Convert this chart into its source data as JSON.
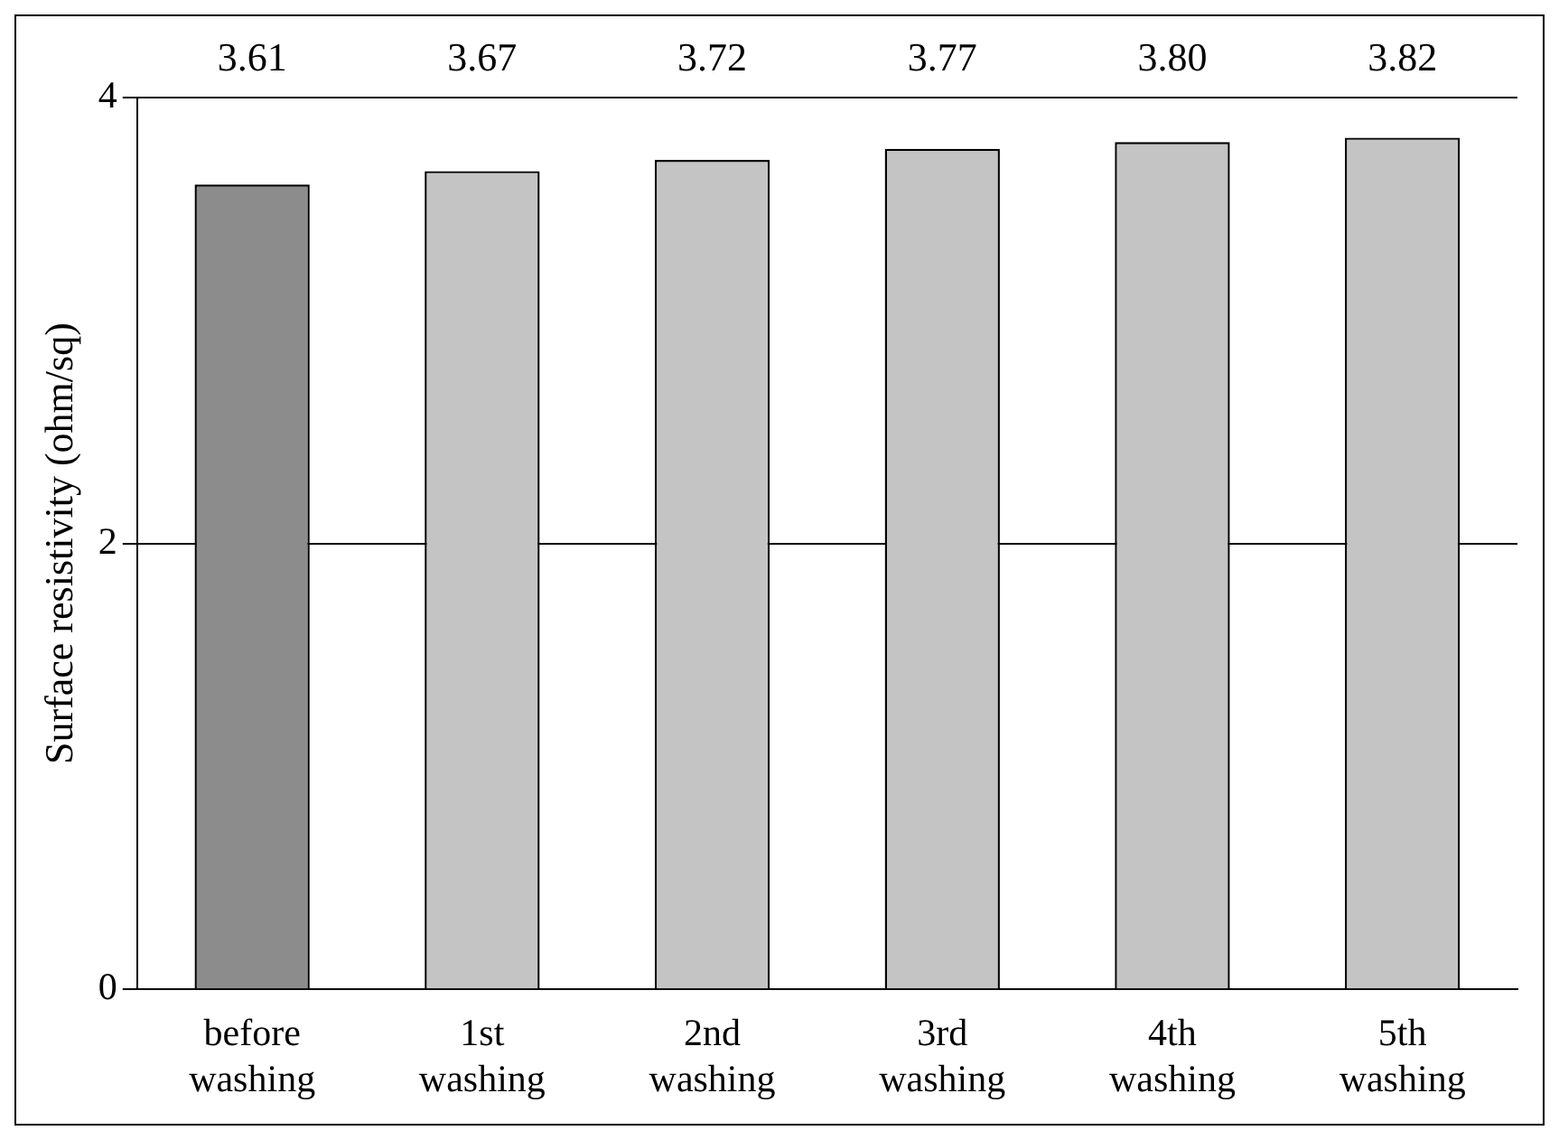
{
  "chart_data": {
    "type": "bar",
    "ylabel": "Surface resistivity (ohm/sq)",
    "categories": [
      "before washing",
      "1st washing",
      "2nd washing",
      "3rd washing",
      "4th washing",
      "5th washing"
    ],
    "values": [
      3.61,
      3.67,
      3.72,
      3.77,
      3.8,
      3.82
    ],
    "value_labels": [
      "3.61",
      "3.67",
      "3.72",
      "3.77",
      "3.80",
      "3.82"
    ],
    "colors": [
      "#8c8c8c",
      "#c4c4c4",
      "#c4c4c4",
      "#c4c4c4",
      "#c4c4c4",
      "#c4c4c4"
    ],
    "ylim": [
      0,
      4
    ],
    "yticks": [
      0,
      2,
      4
    ],
    "grid": "y",
    "legend": false
  }
}
